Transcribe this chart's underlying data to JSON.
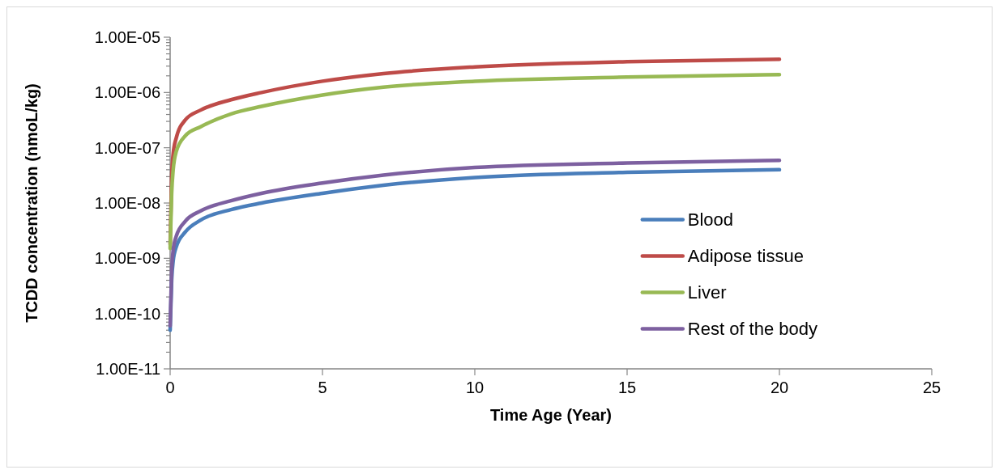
{
  "chart_data": {
    "type": "line",
    "xlabel": "Time Age (Year)",
    "ylabel": "TCDD concentration (nmoL/kg)",
    "log": "y",
    "grid": false,
    "legend": "bottom right",
    "marker": "none",
    "line_style": "solid",
    "xlim": [
      0,
      25
    ],
    "xticks": [
      0,
      5,
      10,
      15,
      20,
      25
    ],
    "ylim": [
      1e-11,
      1e-05
    ],
    "yticks": [
      {
        "value": 1e-11,
        "label": "1.00E-11"
      },
      {
        "value": 1e-10,
        "label": "1.00E-10"
      },
      {
        "value": 1e-09,
        "label": "1.00E-09"
      },
      {
        "value": 1e-08,
        "label": "1.00E-08"
      },
      {
        "value": 1e-07,
        "label": "1.00E-07"
      },
      {
        "value": 1e-06,
        "label": "1.00E-06"
      },
      {
        "value": 1e-05,
        "label": "1.00E-05"
      },
      {
        "value": 2e-11,
        "label": null
      },
      {
        "value": 3e-11,
        "label": null
      },
      {
        "value": 4e-11,
        "label": null
      },
      {
        "value": 5e-11,
        "label": null
      },
      {
        "value": 6e-11,
        "label": null
      },
      {
        "value": 7e-11,
        "label": null
      },
      {
        "value": 8e-11,
        "label": null
      },
      {
        "value": 9e-11,
        "label": null
      },
      {
        "value": 2e-10,
        "label": null
      },
      {
        "value": 3e-10,
        "label": null
      },
      {
        "value": 4e-10,
        "label": null
      },
      {
        "value": 5e-10,
        "label": null
      },
      {
        "value": 6e-10,
        "label": null
      },
      {
        "value": 7e-10,
        "label": null
      },
      {
        "value": 8e-10,
        "label": null
      },
      {
        "value": 9e-10,
        "label": null
      },
      {
        "value": 2e-09,
        "label": null
      },
      {
        "value": 3e-09,
        "label": null
      },
      {
        "value": 4e-09,
        "label": null
      },
      {
        "value": 5e-09,
        "label": null
      },
      {
        "value": 6e-09,
        "label": null
      },
      {
        "value": 7e-09,
        "label": null
      },
      {
        "value": 8e-09,
        "label": null
      },
      {
        "value": 9e-09,
        "label": null
      },
      {
        "value": 2e-08,
        "label": null
      },
      {
        "value": 3e-08,
        "label": null
      },
      {
        "value": 4e-08,
        "label": null
      },
      {
        "value": 5e-08,
        "label": null
      },
      {
        "value": 6e-08,
        "label": null
      },
      {
        "value": 7e-08,
        "label": null
      },
      {
        "value": 8e-08,
        "label": null
      },
      {
        "value": 9e-08,
        "label": null
      },
      {
        "value": 2e-07,
        "label": null
      },
      {
        "value": 3e-07,
        "label": null
      },
      {
        "value": 4e-07,
        "label": null
      },
      {
        "value": 5e-07,
        "label": null
      },
      {
        "value": 6e-07,
        "label": null
      },
      {
        "value": 7e-07,
        "label": null
      },
      {
        "value": 8e-07,
        "label": null
      },
      {
        "value": 9e-07,
        "label": null
      },
      {
        "value": 2e-06,
        "label": null
      },
      {
        "value": 3e-06,
        "label": null
      },
      {
        "value": 4e-06,
        "label": null
      },
      {
        "value": 5e-06,
        "label": null
      },
      {
        "value": 6e-06,
        "label": null
      },
      {
        "value": 7e-06,
        "label": null
      },
      {
        "value": 8e-06,
        "label": null
      },
      {
        "value": 9e-06,
        "label": null
      }
    ],
    "x": [
      0,
      0.05,
      0.1,
      0.2,
      0.5,
      1,
      2,
      3,
      5,
      7,
      10,
      15,
      20
    ],
    "series": [
      {
        "name": "Blood",
        "color": "#4a7ebb",
        "values": [
          5e-11,
          4e-10,
          9e-10,
          1.6e-09,
          3e-09,
          4.9e-09,
          7.6e-09,
          1e-08,
          1.5e-08,
          2.1e-08,
          2.9e-08,
          3.6e-08,
          4e-08
        ]
      },
      {
        "name": "Adipose tissue",
        "color": "#be4b48",
        "values": [
          1.8e-09,
          3e-08,
          7.8e-08,
          1.5e-07,
          3.2e-07,
          4.8e-07,
          7.4e-07,
          1e-06,
          1.6e-06,
          2.2e-06,
          2.9e-06,
          3.6e-06,
          4e-06
        ]
      },
      {
        "name": "Liver",
        "color": "#98b954",
        "values": [
          1.5e-09,
          1.5e-08,
          4e-08,
          8.5e-08,
          1.65e-07,
          2.4e-07,
          4.1e-07,
          5.6e-07,
          9e-07,
          1.25e-06,
          1.6e-06,
          1.9e-06,
          2.1e-06
        ]
      },
      {
        "name": "Rest of the body",
        "color": "#7d60a0",
        "values": [
          6e-11,
          6e-10,
          1.4e-09,
          2.5e-09,
          4.7e-09,
          7.2e-09,
          1.1e-08,
          1.5e-08,
          2.3e-08,
          3.2e-08,
          4.4e-08,
          5.3e-08,
          5.9e-08
        ]
      }
    ]
  }
}
